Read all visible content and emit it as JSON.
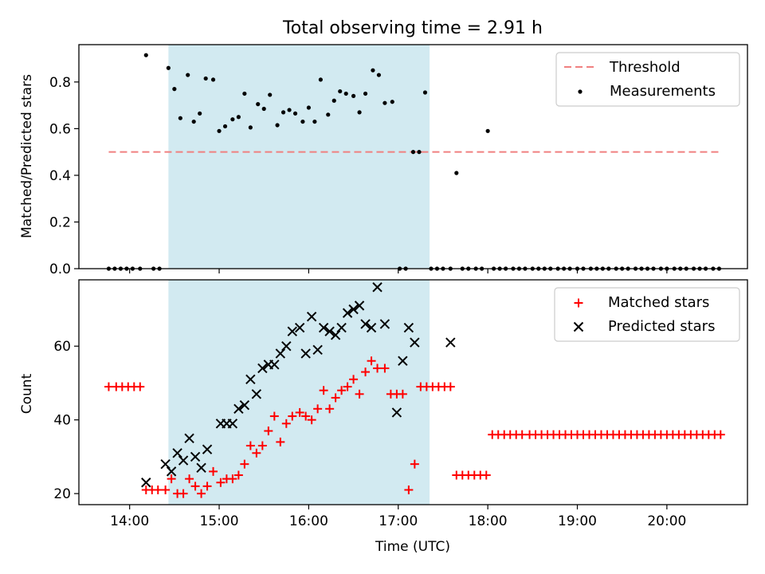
{
  "figure": {
    "title": "Total observing time = 2.91 h",
    "xlabel": "Time (UTC)"
  },
  "colors": {
    "threshold": "#f08080",
    "measurement": "#000000",
    "matched": "#ff0000",
    "predicted": "#000000",
    "shade": "#add8e6"
  },
  "chart_data": [
    {
      "type": "scatter",
      "ylabel": "Matched/Predicted stars",
      "xlim": [
        "13:26",
        "20:54"
      ],
      "ylim": [
        0,
        0.96
      ],
      "xticks": [
        "14:00",
        "15:00",
        "16:00",
        "17:00",
        "18:00",
        "19:00",
        "20:00"
      ],
      "yticks": [
        "0.0",
        "0.2",
        "0.4",
        "0.6",
        "0.8"
      ],
      "shaded_interval": [
        "14:26",
        "17:21"
      ],
      "legend": {
        "position": "upper right",
        "entries": [
          "Threshold",
          "Measurements"
        ]
      },
      "threshold": {
        "name": "Threshold",
        "y": 0.5,
        "x": [
          "13:46",
          "20:37"
        ]
      },
      "series": [
        {
          "name": "Measurements",
          "points": [
            [
              "13:46",
              0
            ],
            [
              "13:50",
              0
            ],
            [
              "13:54",
              0
            ],
            [
              "13:58",
              0
            ],
            [
              "14:02",
              0
            ],
            [
              "14:07",
              0
            ],
            [
              "14:11",
              0.915
            ],
            [
              "14:16",
              0
            ],
            [
              "14:20",
              0
            ],
            [
              "14:26",
              0.86
            ],
            [
              "14:30",
              0.77
            ],
            [
              "14:34",
              0.645
            ],
            [
              "14:39",
              0.83
            ],
            [
              "14:43",
              0.63
            ],
            [
              "14:47",
              0.665
            ],
            [
              "14:51",
              0.815
            ],
            [
              "14:56",
              0.81
            ],
            [
              "15:00",
              0.59
            ],
            [
              "15:04",
              0.61
            ],
            [
              "15:09",
              0.64
            ],
            [
              "15:13",
              0.65
            ],
            [
              "15:17",
              0.75
            ],
            [
              "15:21",
              0.605
            ],
            [
              "15:26",
              0.705
            ],
            [
              "15:30",
              0.685
            ],
            [
              "15:34",
              0.745
            ],
            [
              "15:39",
              0.615
            ],
            [
              "15:43",
              0.67
            ],
            [
              "15:47",
              0.68
            ],
            [
              "15:51",
              0.665
            ],
            [
              "15:56",
              0.63
            ],
            [
              "16:00",
              0.69
            ],
            [
              "16:04",
              0.63
            ],
            [
              "16:08",
              0.81
            ],
            [
              "16:13",
              0.66
            ],
            [
              "16:17",
              0.72
            ],
            [
              "16:21",
              0.76
            ],
            [
              "16:25",
              0.75
            ],
            [
              "16:30",
              0.74
            ],
            [
              "16:34",
              0.67
            ],
            [
              "16:38",
              0.75
            ],
            [
              "16:43",
              0.85
            ],
            [
              "16:47",
              0.83
            ],
            [
              "16:51",
              0.71
            ],
            [
              "16:56",
              0.715
            ],
            [
              "17:01",
              0
            ],
            [
              "17:05",
              0
            ],
            [
              "17:10",
              0.5
            ],
            [
              "17:14",
              0.5
            ],
            [
              "17:18",
              0.755
            ],
            [
              "17:22",
              0
            ],
            [
              "17:26",
              0
            ],
            [
              "17:30",
              0
            ],
            [
              "17:35",
              0
            ],
            [
              "17:39",
              0.41
            ],
            [
              "17:43",
              0
            ],
            [
              "17:47",
              0
            ],
            [
              "17:52",
              0
            ],
            [
              "17:56",
              0
            ],
            [
              "18:00",
              0.59
            ],
            [
              "18:04",
              0
            ],
            [
              "18:08",
              0
            ],
            [
              "18:12",
              0
            ],
            [
              "18:17",
              0
            ],
            [
              "18:21",
              0
            ],
            [
              "18:25",
              0
            ],
            [
              "18:30",
              0
            ],
            [
              "18:34",
              0
            ],
            [
              "18:38",
              0
            ],
            [
              "18:42",
              0
            ],
            [
              "18:47",
              0
            ],
            [
              "18:51",
              0
            ],
            [
              "18:55",
              0
            ],
            [
              "19:00",
              0
            ],
            [
              "19:04",
              0
            ],
            [
              "19:09",
              0
            ],
            [
              "19:13",
              0
            ],
            [
              "19:17",
              0
            ],
            [
              "19:21",
              0
            ],
            [
              "19:26",
              0
            ],
            [
              "19:30",
              0
            ],
            [
              "19:34",
              0
            ],
            [
              "19:39",
              0
            ],
            [
              "19:43",
              0
            ],
            [
              "19:47",
              0
            ],
            [
              "19:51",
              0
            ],
            [
              "19:56",
              0
            ],
            [
              "20:00",
              0
            ],
            [
              "20:05",
              0
            ],
            [
              "20:09",
              0
            ],
            [
              "20:13",
              0
            ],
            [
              "20:18",
              0
            ],
            [
              "20:22",
              0
            ],
            [
              "20:26",
              0
            ],
            [
              "20:31",
              0
            ],
            [
              "20:35",
              0
            ]
          ]
        }
      ]
    },
    {
      "type": "scatter",
      "ylabel": "Count",
      "xlim": [
        "13:26",
        "20:54"
      ],
      "ylim": [
        17,
        78
      ],
      "xticks": [
        "14:00",
        "15:00",
        "16:00",
        "17:00",
        "18:00",
        "19:00",
        "20:00"
      ],
      "yticks": [
        "20",
        "40",
        "60"
      ],
      "shaded_interval": [
        "14:26",
        "17:21"
      ],
      "legend": {
        "position": "upper right",
        "entries": [
          "Matched stars",
          "Predicted stars"
        ]
      },
      "series": [
        {
          "name": "Matched stars",
          "marker": "+",
          "points": [
            [
              "13:46",
              49
            ],
            [
              "13:51",
              49
            ],
            [
              "13:55",
              49
            ],
            [
              "13:59",
              49
            ],
            [
              "14:03",
              49
            ],
            [
              "14:07",
              49
            ],
            [
              "14:11",
              21
            ],
            [
              "14:15",
              21
            ],
            [
              "14:19",
              21
            ],
            [
              "14:24",
              21
            ],
            [
              "14:28",
              24
            ],
            [
              "14:32",
              20
            ],
            [
              "14:36",
              20
            ],
            [
              "14:40",
              24
            ],
            [
              "14:44",
              22
            ],
            [
              "14:48",
              20
            ],
            [
              "14:52",
              22
            ],
            [
              "14:56",
              26
            ],
            [
              "15:01",
              23
            ],
            [
              "15:05",
              24
            ],
            [
              "15:09",
              24
            ],
            [
              "15:13",
              25
            ],
            [
              "15:17",
              28
            ],
            [
              "15:21",
              33
            ],
            [
              "15:25",
              31
            ],
            [
              "15:29",
              33
            ],
            [
              "15:33",
              37
            ],
            [
              "15:37",
              41
            ],
            [
              "15:41",
              34
            ],
            [
              "15:45",
              39
            ],
            [
              "15:49",
              41
            ],
            [
              "15:54",
              42
            ],
            [
              "15:58",
              41
            ],
            [
              "16:02",
              40
            ],
            [
              "16:06",
              43
            ],
            [
              "16:10",
              48
            ],
            [
              "16:14",
              43
            ],
            [
              "16:18",
              46
            ],
            [
              "16:22",
              48
            ],
            [
              "16:26",
              49
            ],
            [
              "16:30",
              51
            ],
            [
              "16:34",
              47
            ],
            [
              "16:38",
              53
            ],
            [
              "16:42",
              56
            ],
            [
              "16:46",
              54
            ],
            [
              "16:51",
              54
            ],
            [
              "16:55",
              47
            ],
            [
              "16:59",
              47
            ],
            [
              "17:03",
              47
            ],
            [
              "17:07",
              21
            ],
            [
              "17:11",
              28
            ],
            [
              "17:15",
              49
            ],
            [
              "17:19",
              49
            ],
            [
              "17:23",
              49
            ],
            [
              "17:27",
              49
            ],
            [
              "17:31",
              49
            ],
            [
              "17:35",
              49
            ],
            [
              "17:39",
              25
            ],
            [
              "17:43",
              25
            ],
            [
              "17:47",
              25
            ],
            [
              "17:51",
              25
            ],
            [
              "17:55",
              25
            ],
            [
              "17:59",
              25
            ],
            [
              "18:03",
              36
            ],
            [
              "18:07",
              36
            ],
            [
              "18:11",
              36
            ],
            [
              "18:15",
              36
            ],
            [
              "18:19",
              36
            ],
            [
              "18:23",
              36
            ],
            [
              "18:28",
              36
            ],
            [
              "18:32",
              36
            ],
            [
              "18:36",
              36
            ],
            [
              "18:40",
              36
            ],
            [
              "18:44",
              36
            ],
            [
              "18:48",
              36
            ],
            [
              "18:52",
              36
            ],
            [
              "18:56",
              36
            ],
            [
              "19:00",
              36
            ],
            [
              "19:04",
              36
            ],
            [
              "19:08",
              36
            ],
            [
              "19:12",
              36
            ],
            [
              "19:16",
              36
            ],
            [
              "19:20",
              36
            ],
            [
              "19:24",
              36
            ],
            [
              "19:28",
              36
            ],
            [
              "19:32",
              36
            ],
            [
              "19:36",
              36
            ],
            [
              "19:40",
              36
            ],
            [
              "19:44",
              36
            ],
            [
              "19:48",
              36
            ],
            [
              "19:52",
              36
            ],
            [
              "19:56",
              36
            ],
            [
              "20:00",
              36
            ],
            [
              "20:04",
              36
            ],
            [
              "20:08",
              36
            ],
            [
              "20:12",
              36
            ],
            [
              "20:16",
              36
            ],
            [
              "20:20",
              36
            ],
            [
              "20:24",
              36
            ],
            [
              "20:28",
              36
            ],
            [
              "20:32",
              36
            ],
            [
              "20:36",
              36
            ]
          ]
        },
        {
          "name": "Predicted stars",
          "marker": "x",
          "points": [
            [
              "14:11",
              23
            ],
            [
              "14:24",
              28
            ],
            [
              "14:28",
              26
            ],
            [
              "14:32",
              31
            ],
            [
              "14:36",
              29
            ],
            [
              "14:40",
              35
            ],
            [
              "14:44",
              30
            ],
            [
              "14:48",
              27
            ],
            [
              "14:52",
              32
            ],
            [
              "15:01",
              39
            ],
            [
              "15:05",
              39
            ],
            [
              "15:09",
              39
            ],
            [
              "15:13",
              43
            ],
            [
              "15:17",
              44
            ],
            [
              "15:21",
              51
            ],
            [
              "15:25",
              47
            ],
            [
              "15:29",
              54
            ],
            [
              "15:33",
              55
            ],
            [
              "15:37",
              55
            ],
            [
              "15:41",
              58
            ],
            [
              "15:45",
              60
            ],
            [
              "15:49",
              64
            ],
            [
              "15:54",
              65
            ],
            [
              "15:58",
              58
            ],
            [
              "16:02",
              68
            ],
            [
              "16:06",
              59
            ],
            [
              "16:10",
              65
            ],
            [
              "16:14",
              64
            ],
            [
              "16:18",
              63
            ],
            [
              "16:22",
              65
            ],
            [
              "16:26",
              69
            ],
            [
              "16:30",
              70
            ],
            [
              "16:34",
              71
            ],
            [
              "16:38",
              66
            ],
            [
              "16:42",
              65
            ],
            [
              "16:46",
              76
            ],
            [
              "16:51",
              66
            ],
            [
              "16:59",
              42
            ],
            [
              "17:03",
              56
            ],
            [
              "17:07",
              65
            ],
            [
              "17:11",
              61
            ],
            [
              "17:35",
              61
            ]
          ]
        }
      ]
    }
  ]
}
